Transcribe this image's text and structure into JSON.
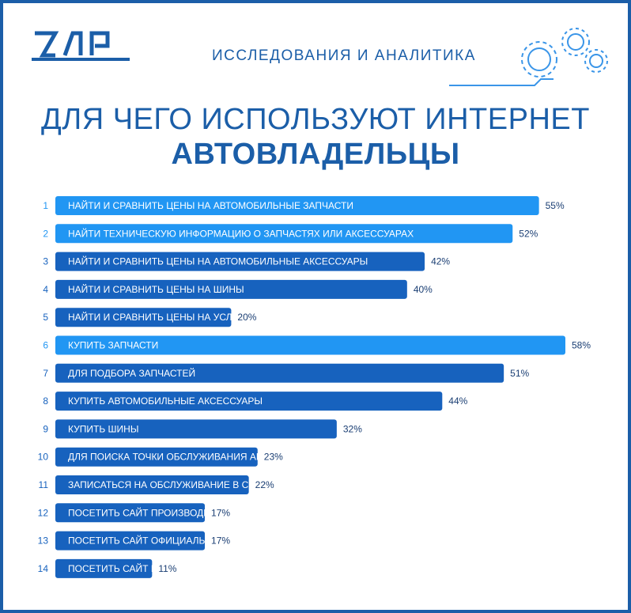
{
  "header": {
    "logo_text": "ZAP",
    "subtitle": "ИССЛЕДОВАНИЯ И АНАЛИТИКА",
    "icon": "gears-icon"
  },
  "title": {
    "line1": "ДЛЯ ЧЕГО ИСПОЛЬЗУЮТ ИНТЕРНЕТ",
    "line2": "АВТОВЛАДЕЛЬЦЫ"
  },
  "colors": {
    "brand": "#1b5ea8",
    "highlight": "#2196f3",
    "bar": "#1762be",
    "value_text": "#1a3e73"
  },
  "chart_data": {
    "type": "bar",
    "orientation": "horizontal",
    "title": "ДЛЯ ЧЕГО ИСПОЛЬЗУЮТ ИНТЕРНЕТ АВТОВЛАДЕЛЬЦЫ",
    "unit": "%",
    "xlim": [
      0,
      60
    ],
    "grid": false,
    "items": [
      {
        "index": "1",
        "label": "НАЙТИ И СРАВНИТЬ ЦЕНЫ НА АВТОМОБИЛЬНЫЕ ЗАПЧАСТИ",
        "value": 55,
        "value_label": "55%",
        "highlight": true
      },
      {
        "index": "2",
        "label": "НАЙТИ ТЕХНИЧЕСКУЮ ИНФОРМАЦИЮ О ЗАПЧАСТЯХ ИЛИ АКСЕССУАРАХ",
        "value": 52,
        "value_label": "52%",
        "highlight": true
      },
      {
        "index": "3",
        "label": "НАЙТИ И СРАВНИТЬ ЦЕНЫ НА АВТОМОБИЛЬНЫЕ АКСЕССУАРЫ",
        "value": 42,
        "value_label": "42%",
        "highlight": false
      },
      {
        "index": "4",
        "label": "НАЙТИ И СРАВНИТЬ ЦЕНЫ НА ШИНЫ",
        "value": 40,
        "value_label": "40%",
        "highlight": false
      },
      {
        "index": "5",
        "label": "НАЙТИ И СРАВНИТЬ ЦЕНЫ НА УСЛУГИ СЕРВИСА",
        "value": 20,
        "value_label": "20%",
        "highlight": false
      },
      {
        "index": "6",
        "label": "КУПИТЬ ЗАПЧАСТИ",
        "value": 58,
        "value_label": "58%",
        "highlight": true
      },
      {
        "index": "7",
        "label": "ДЛЯ ПОДБОРА ЗАПЧАСТЕЙ",
        "value": 51,
        "value_label": "51%",
        "highlight": false
      },
      {
        "index": "8",
        "label": "КУПИТЬ АВТОМОБИЛЬНЫЕ АКСЕССУАРЫ",
        "value": 44,
        "value_label": "44%",
        "highlight": false
      },
      {
        "index": "9",
        "label": "КУПИТЬ ШИНЫ",
        "value": 32,
        "value_label": "32%",
        "highlight": false
      },
      {
        "index": "10",
        "label": "ДЛЯ ПОИСКА ТОЧКИ ОБСЛУЖИВАНИЯ АВТОМОБИЛЯ",
        "value": 23,
        "value_label": "23%",
        "highlight": false
      },
      {
        "index": "11",
        "label": "ЗАПИСАТЬСЯ НА ОБСЛУЖИВАНИЕ В СЕРВИС",
        "value": 22,
        "value_label": "22%",
        "highlight": false
      },
      {
        "index": "12",
        "label": "ПОСЕТИТЬ САЙТ ПРОИЗВОДИТЕЛЯ АВТОМОБИЛЕЙ",
        "value": 17,
        "value_label": "17%",
        "highlight": false
      },
      {
        "index": "13",
        "label": "ПОСЕТИТЬ САЙТ ОФИЦИАЛЬНОГО ДИЛЕРА",
        "value": 17,
        "value_label": "17%",
        "highlight": false
      },
      {
        "index": "14",
        "label": "ПОСЕТИТЬ САЙТ НЕЗАВИСИМОГО СЕРВИСА",
        "value": 11,
        "value_label": "11%",
        "highlight": false
      }
    ]
  }
}
